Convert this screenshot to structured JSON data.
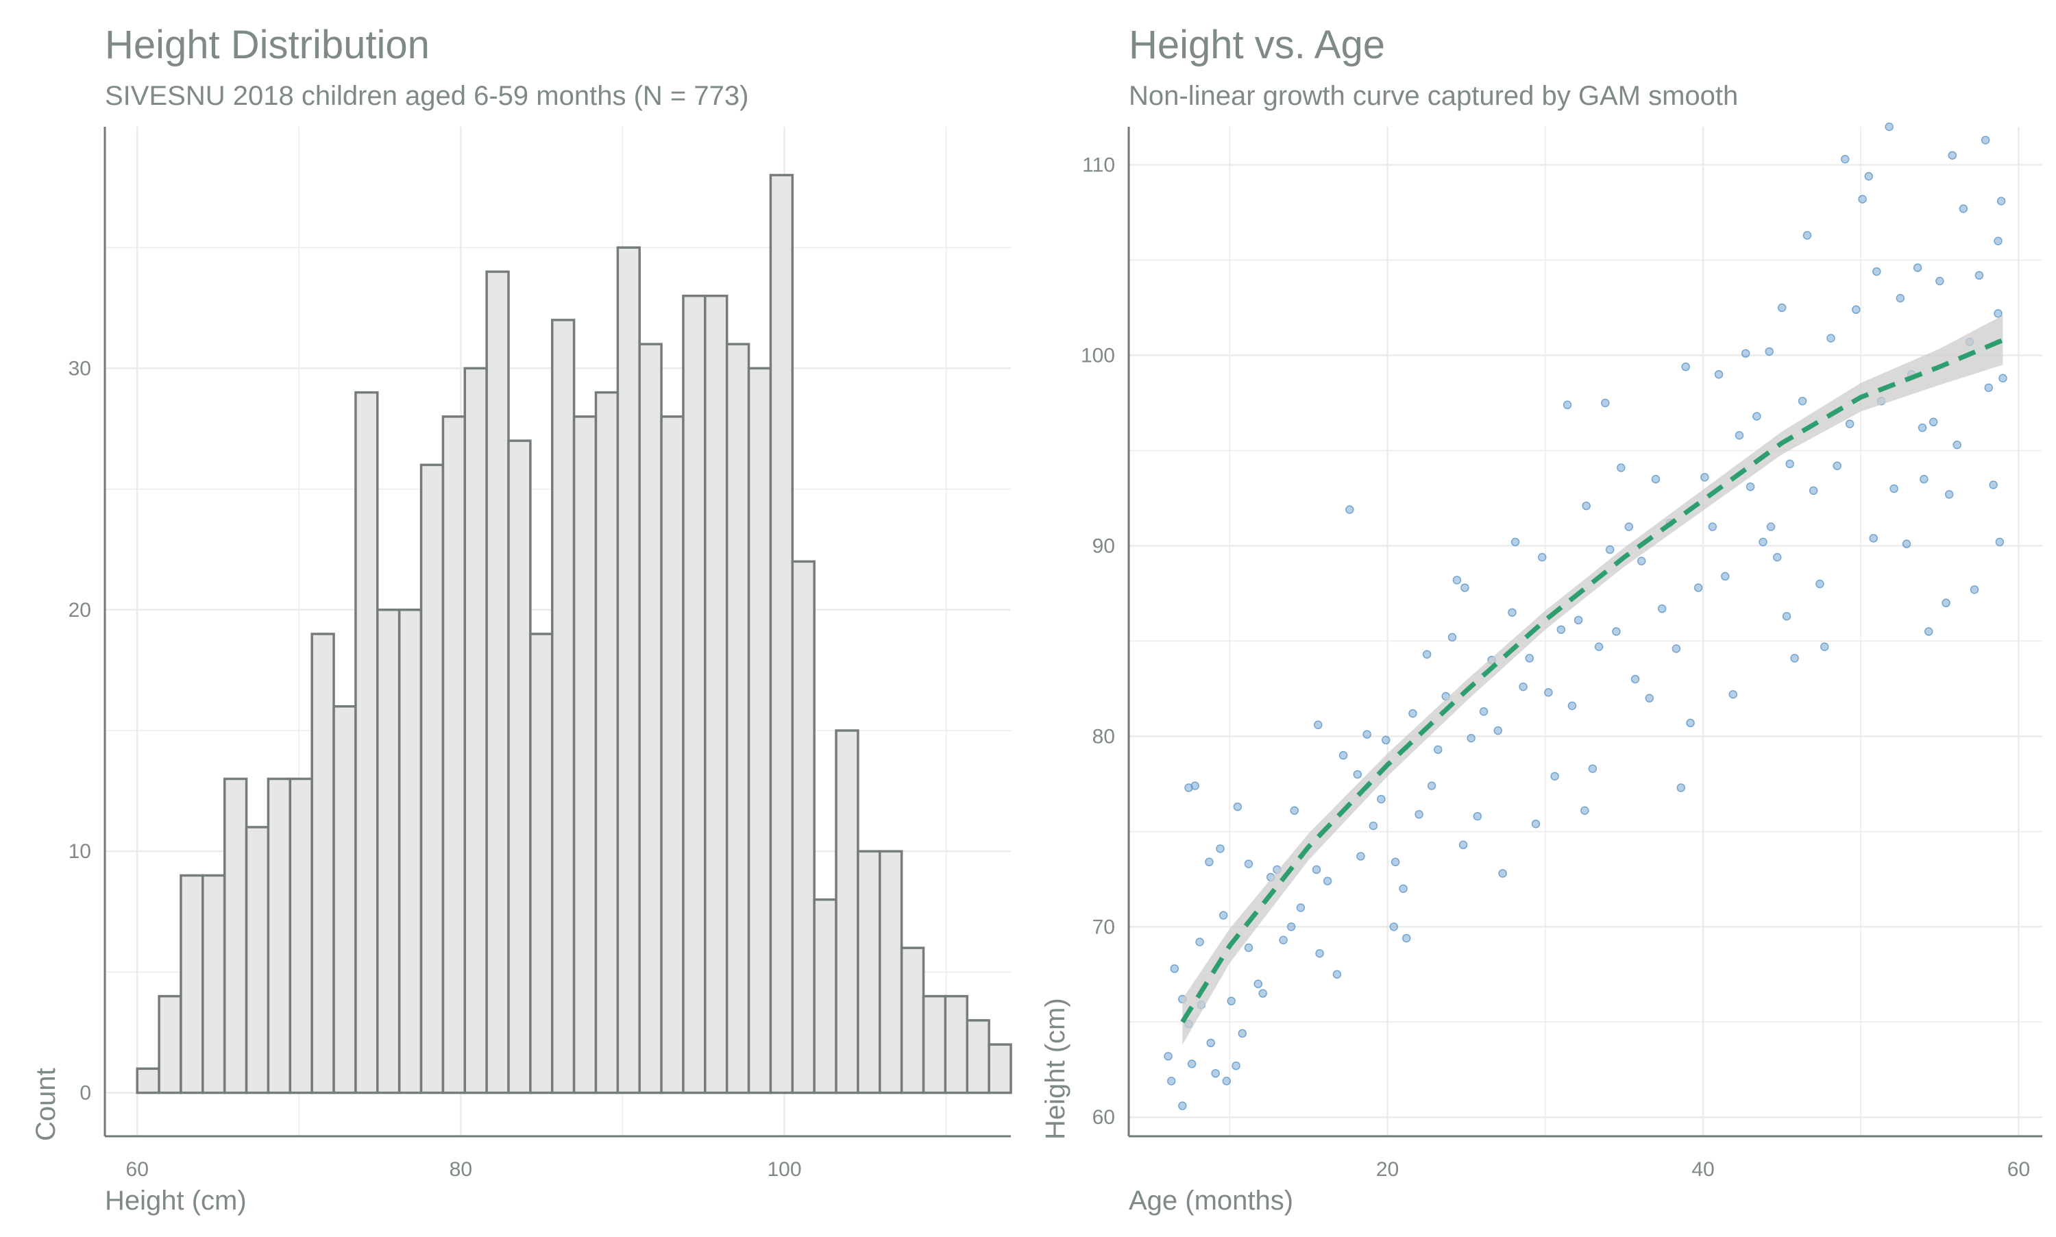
{
  "chart_data": [
    {
      "type": "bar",
      "title": "Height Distribution",
      "subtitle": "SIVESNU 2018 children aged 6-59 months (N = 773)",
      "xlabel": "Height (cm)",
      "ylabel": "Count",
      "bin_width": 1.35,
      "bin_start": 60.0,
      "counts": [
        1,
        4,
        9,
        9,
        13,
        11,
        13,
        13,
        19,
        16,
        29,
        20,
        20,
        26,
        28,
        30,
        34,
        27,
        19,
        32,
        28,
        29,
        35,
        31,
        28,
        33,
        33,
        31,
        30,
        38,
        22,
        8,
        15,
        10,
        10,
        6,
        4,
        4,
        3,
        2
      ],
      "xlim": [
        58.0,
        114.0
      ],
      "ylim": [
        -1.8,
        40.0
      ],
      "x_ticks": [
        60,
        80,
        100
      ],
      "y_ticks": [
        0,
        10,
        20,
        30
      ],
      "grid": true,
      "colors": {
        "bar_fill": "#e6e7e6",
        "bar_edge": "#757d79",
        "axis": "#6e7a77",
        "text": "#7e8988",
        "grid": "#ebebeb"
      }
    },
    {
      "type": "scatter",
      "title": "Height vs. Age",
      "subtitle": "Non-linear growth curve captured by GAM smooth",
      "xlabel": "Age (months)",
      "ylabel": "Height (cm)",
      "xlim": [
        3.6,
        61.5
      ],
      "ylim": [
        59.0,
        112.0
      ],
      "x_ticks": [
        20,
        40,
        60
      ],
      "y_ticks": [
        60,
        70,
        80,
        90,
        100,
        110
      ],
      "grid": true,
      "points": [
        [
          6.5,
          67.8
        ],
        [
          7.0,
          66.2
        ],
        [
          7.4,
          64.9
        ],
        [
          6.1,
          63.2
        ],
        [
          6.3,
          61.9
        ],
        [
          7.6,
          62.8
        ],
        [
          7.0,
          60.6
        ],
        [
          8.2,
          65.9
        ],
        [
          8.8,
          63.9
        ],
        [
          9.1,
          62.3
        ],
        [
          9.8,
          61.9
        ],
        [
          10.4,
          62.7
        ],
        [
          7.4,
          77.3
        ],
        [
          7.8,
          77.4
        ],
        [
          8.1,
          69.2
        ],
        [
          8.7,
          73.4
        ],
        [
          9.4,
          74.1
        ],
        [
          9.6,
          70.6
        ],
        [
          10.1,
          66.1
        ],
        [
          10.8,
          64.4
        ],
        [
          11.2,
          68.9
        ],
        [
          11.8,
          67.0
        ],
        [
          10.5,
          76.3
        ],
        [
          11.2,
          73.3
        ],
        [
          12.1,
          66.5
        ],
        [
          12.6,
          72.6
        ],
        [
          13.0,
          73.0
        ],
        [
          13.4,
          69.3
        ],
        [
          13.9,
          70.0
        ],
        [
          14.5,
          71.0
        ],
        [
          14.1,
          76.1
        ],
        [
          15.5,
          73.0
        ],
        [
          15.7,
          68.6
        ],
        [
          15.6,
          80.6
        ],
        [
          16.2,
          72.4
        ],
        [
          17.2,
          79.0
        ],
        [
          17.6,
          91.9
        ],
        [
          18.3,
          73.7
        ],
        [
          18.1,
          78.0
        ],
        [
          18.7,
          80.1
        ],
        [
          19.1,
          75.3
        ],
        [
          19.6,
          76.7
        ],
        [
          19.9,
          79.8
        ],
        [
          20.5,
          73.4
        ],
        [
          21.2,
          69.4
        ],
        [
          21.6,
          81.2
        ],
        [
          22.0,
          75.9
        ],
        [
          22.5,
          84.3
        ],
        [
          22.8,
          77.4
        ],
        [
          23.2,
          79.3
        ],
        [
          23.7,
          82.1
        ],
        [
          24.1,
          85.2
        ],
        [
          24.4,
          88.2
        ],
        [
          24.9,
          87.8
        ],
        [
          25.3,
          79.9
        ],
        [
          25.7,
          75.8
        ],
        [
          26.1,
          81.3
        ],
        [
          26.6,
          84.0
        ],
        [
          27.0,
          80.3
        ],
        [
          27.3,
          72.8
        ],
        [
          27.9,
          86.5
        ],
        [
          28.1,
          90.2
        ],
        [
          28.6,
          82.6
        ],
        [
          29.0,
          84.1
        ],
        [
          29.4,
          75.4
        ],
        [
          29.8,
          89.4
        ],
        [
          30.2,
          82.3
        ],
        [
          30.6,
          77.9
        ],
        [
          31.0,
          85.6
        ],
        [
          31.4,
          97.4
        ],
        [
          31.7,
          81.6
        ],
        [
          32.1,
          86.1
        ],
        [
          32.6,
          92.1
        ],
        [
          33.0,
          78.3
        ],
        [
          33.4,
          84.7
        ],
        [
          33.8,
          97.5
        ],
        [
          34.1,
          89.8
        ],
        [
          34.5,
          85.5
        ],
        [
          34.8,
          94.1
        ],
        [
          35.3,
          91.0
        ],
        [
          35.7,
          83.0
        ],
        [
          36.1,
          89.2
        ],
        [
          36.6,
          82.0
        ],
        [
          37.0,
          93.5
        ],
        [
          37.4,
          86.7
        ],
        [
          37.9,
          91.2
        ],
        [
          38.3,
          84.6
        ],
        [
          38.6,
          77.3
        ],
        [
          38.9,
          99.4
        ],
        [
          39.2,
          80.7
        ],
        [
          39.7,
          87.8
        ],
        [
          40.1,
          93.6
        ],
        [
          40.6,
          91.0
        ],
        [
          41.0,
          99.0
        ],
        [
          41.4,
          88.4
        ],
        [
          41.9,
          82.2
        ],
        [
          42.3,
          95.8
        ],
        [
          42.7,
          100.1
        ],
        [
          43.0,
          93.1
        ],
        [
          43.4,
          96.8
        ],
        [
          43.8,
          90.2
        ],
        [
          44.2,
          100.2
        ],
        [
          44.7,
          89.4
        ],
        [
          45.0,
          102.5
        ],
        [
          45.5,
          94.3
        ],
        [
          45.8,
          84.1
        ],
        [
          46.3,
          97.6
        ],
        [
          46.6,
          106.3
        ],
        [
          47.0,
          92.9
        ],
        [
          47.4,
          88.0
        ],
        [
          47.7,
          84.7
        ],
        [
          48.1,
          100.9
        ],
        [
          48.5,
          94.2
        ],
        [
          49.0,
          110.3
        ],
        [
          49.3,
          96.4
        ],
        [
          49.7,
          102.4
        ],
        [
          50.1,
          108.2
        ],
        [
          50.5,
          109.4
        ],
        [
          50.8,
          90.4
        ],
        [
          51.0,
          104.4
        ],
        [
          51.3,
          97.6
        ],
        [
          51.8,
          112.0
        ],
        [
          52.1,
          93.0
        ],
        [
          52.5,
          103.0
        ],
        [
          52.9,
          90.1
        ],
        [
          53.2,
          99.0
        ],
        [
          53.6,
          104.6
        ],
        [
          53.9,
          96.2
        ],
        [
          54.3,
          85.5
        ],
        [
          54.6,
          96.5
        ],
        [
          55.0,
          103.9
        ],
        [
          55.4,
          87.0
        ],
        [
          55.8,
          110.5
        ],
        [
          56.1,
          95.3
        ],
        [
          56.5,
          107.7
        ],
        [
          56.9,
          100.7
        ],
        [
          57.2,
          87.7
        ],
        [
          57.5,
          104.2
        ],
        [
          57.9,
          111.3
        ],
        [
          58.1,
          98.3
        ],
        [
          58.4,
          93.2
        ],
        [
          58.7,
          102.2
        ],
        [
          58.9,
          108.1
        ],
        [
          59.0,
          98.8
        ],
        [
          58.8,
          90.2
        ],
        [
          58.7,
          106.0
        ],
        [
          20.4,
          70.0
        ],
        [
          21.0,
          72.0
        ],
        [
          16.8,
          67.5
        ],
        [
          24.8,
          74.3
        ],
        [
          32.5,
          76.1
        ],
        [
          45.3,
          86.3
        ],
        [
          44.3,
          91.0
        ],
        [
          55.6,
          92.7
        ],
        [
          54.0,
          93.5
        ]
      ],
      "smooth": {
        "x": [
          7,
          10,
          15,
          20,
          25,
          30,
          35,
          40,
          45,
          50,
          55,
          59
        ],
        "y": [
          65.0,
          69.0,
          74.2,
          78.5,
          82.4,
          86.1,
          89.4,
          92.4,
          95.4,
          97.8,
          99.4,
          100.8
        ],
        "se": [
          1.2,
          0.9,
          0.7,
          0.6,
          0.55,
          0.5,
          0.5,
          0.55,
          0.6,
          0.75,
          0.95,
          1.3
        ]
      },
      "colors": {
        "point": "#5b95c8",
        "smooth": "#2e9e6e",
        "ci": "#cccccc",
        "axis": "#6e7a77",
        "text": "#7e8988",
        "grid": "#ebebeb"
      }
    }
  ]
}
